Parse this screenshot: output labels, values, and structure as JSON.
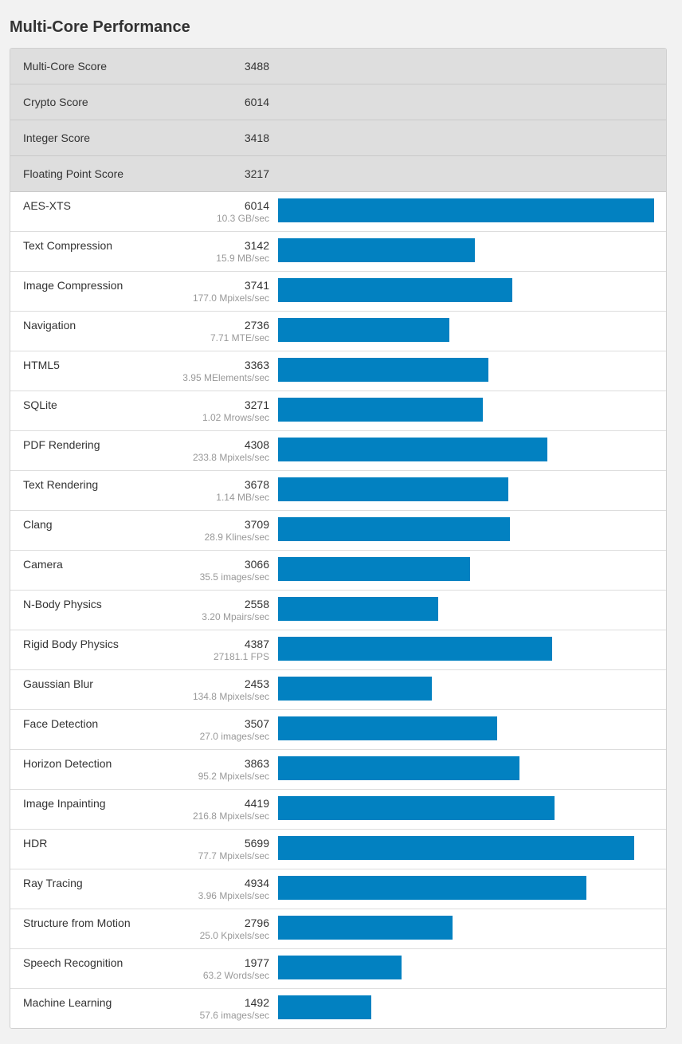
{
  "page": {
    "title": "Multi-Core Performance"
  },
  "colors": {
    "bar": "#0281c1",
    "summary_row_bg": "#dedede",
    "page_bg": "#f2f2f2"
  },
  "summary": [
    {
      "label": "Multi-Core Score",
      "value": "3488"
    },
    {
      "label": "Crypto Score",
      "value": "6014"
    },
    {
      "label": "Integer Score",
      "value": "3418"
    },
    {
      "label": "Floating Point Score",
      "value": "3217"
    }
  ],
  "chart_data": {
    "type": "bar",
    "orientation": "horizontal",
    "xlim": [
      0,
      6014
    ],
    "categories": [
      "AES-XTS",
      "Text Compression",
      "Image Compression",
      "Navigation",
      "HTML5",
      "SQLite",
      "PDF Rendering",
      "Text Rendering",
      "Clang",
      "Camera",
      "N-Body Physics",
      "Rigid Body Physics",
      "Gaussian Blur",
      "Face Detection",
      "Horizon Detection",
      "Image Inpainting",
      "HDR",
      "Ray Tracing",
      "Structure from Motion",
      "Speech Recognition",
      "Machine Learning"
    ],
    "values": [
      6014,
      3142,
      3741,
      2736,
      3363,
      3271,
      4308,
      3678,
      3709,
      3066,
      2558,
      4387,
      2453,
      3507,
      3863,
      4419,
      5699,
      4934,
      2796,
      1977,
      1492
    ],
    "rates": [
      "10.3 GB/sec",
      "15.9 MB/sec",
      "177.0 Mpixels/sec",
      "7.71 MTE/sec",
      "3.95 MElements/sec",
      "1.02 Mrows/sec",
      "233.8 Mpixels/sec",
      "1.14 MB/sec",
      "28.9 Klines/sec",
      "35.5 images/sec",
      "3.20 Mpairs/sec",
      "27181.1 FPS",
      "134.8 Mpixels/sec",
      "27.0 images/sec",
      "95.2 Mpixels/sec",
      "216.8 Mpixels/sec",
      "77.7 Mpixels/sec",
      "3.96 Mpixels/sec",
      "25.0 Kpixels/sec",
      "63.2 Words/sec",
      "57.6 images/sec"
    ]
  }
}
